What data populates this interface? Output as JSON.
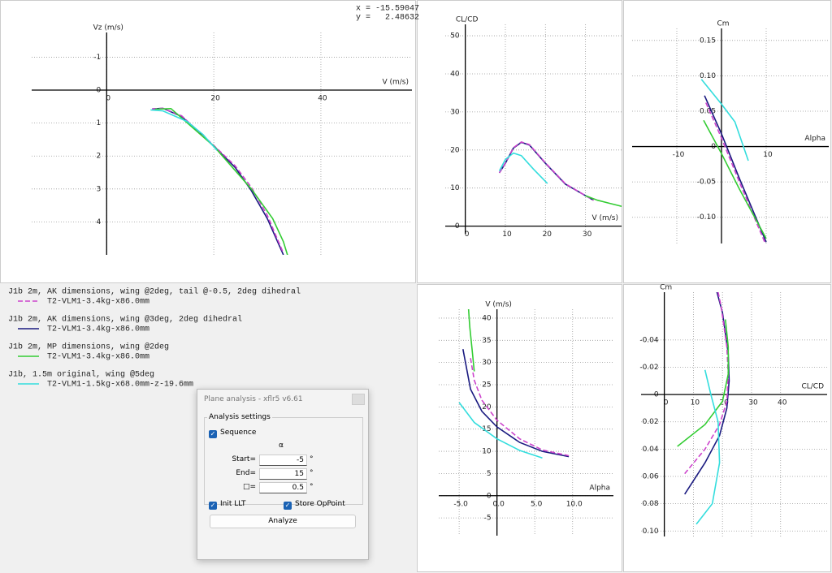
{
  "cursor_readout": {
    "x": "x = -15.59047",
    "y": "y =   2.48632"
  },
  "chart_data": [
    {
      "type": "line",
      "x_label": "V (m/s)",
      "y_label": "Vz (m/s)",
      "xlim": [
        -14,
        57
      ],
      "ylim": [
        5,
        -1.75
      ],
      "xticks": [
        0,
        20,
        40
      ],
      "yticks": [
        -1,
        0,
        1,
        2,
        3,
        4
      ],
      "grid": true,
      "series": [
        {
          "color": "#1a1a80",
          "dash": false,
          "x": [
            8.5,
            10.5,
            14,
            20,
            24,
            27,
            30,
            33
          ],
          "values": [
            0.57,
            0.55,
            0.8,
            1.7,
            2.35,
            3.05,
            3.9,
            5.0
          ]
        },
        {
          "color": "#cc44cc",
          "dash": true,
          "x": [
            8.5,
            10.5,
            14,
            20,
            24,
            27,
            30,
            33
          ],
          "values": [
            0.57,
            0.55,
            0.78,
            1.68,
            2.3,
            2.95,
            3.8,
            4.95
          ]
        },
        {
          "color": "#33cc33",
          "dash": false,
          "x": [
            9,
            12,
            20,
            27,
            31,
            33,
            34.7
          ],
          "values": [
            0.58,
            0.56,
            1.7,
            3.0,
            3.9,
            4.6,
            5.5
          ]
        },
        {
          "color": "#33dddd",
          "dash": false,
          "x": [
            8.2,
            10.5,
            15,
            18,
            20.6
          ],
          "values": [
            0.6,
            0.63,
            0.95,
            1.35,
            1.83
          ]
        }
      ]
    },
    {
      "type": "line",
      "x_label": "V (m/s)",
      "y_label": "CL/CD",
      "xlim": [
        -5,
        39
      ],
      "ylim": [
        -2,
        53
      ],
      "xticks": [
        0,
        10,
        20,
        30
      ],
      "yticks": [
        0,
        10,
        20,
        30,
        40,
        50
      ],
      "grid": true,
      "series": [
        {
          "color": "#1a1a80",
          "dash": false,
          "x": [
            8.5,
            10,
            12,
            14,
            16,
            20,
            25,
            30,
            32
          ],
          "values": [
            14,
            16.5,
            20.5,
            22,
            21.3,
            16.5,
            11,
            8,
            6.8
          ]
        },
        {
          "color": "#cc44cc",
          "dash": true,
          "x": [
            8.5,
            10,
            12,
            14,
            16,
            20,
            25,
            30,
            32
          ],
          "values": [
            14,
            16.6,
            20.6,
            22.1,
            21.4,
            16.6,
            11.1,
            8,
            6.8
          ]
        },
        {
          "color": "#33cc33",
          "dash": false,
          "x": [
            30,
            33,
            36,
            39
          ],
          "values": [
            8,
            6.8,
            6,
            5.2
          ]
        },
        {
          "color": "#33dddd",
          "dash": false,
          "x": [
            8.5,
            10,
            12,
            14,
            17,
            20.5
          ],
          "values": [
            14.5,
            17.5,
            19.2,
            18.5,
            15,
            11.2
          ]
        }
      ]
    },
    {
      "type": "line",
      "x_label": "Alpha",
      "y_label": "Cm",
      "xlim": [
        -20,
        24
      ],
      "ylim": [
        -0.137,
        0.167
      ],
      "xticks": [
        -10,
        10
      ],
      "yticks": [
        {
          "value": -0.1,
          "label": "-0.10"
        },
        -0.05,
        0,
        0.05,
        {
          "value": 0.1,
          "label": "0.10"
        },
        0.15
      ],
      "grid": true,
      "series": [
        {
          "color": "#1a1a80",
          "dash": false,
          "x": [
            -3.8,
            0,
            4,
            10
          ],
          "values": [
            0.072,
            0.018,
            -0.045,
            -0.135
          ]
        },
        {
          "color": "#cc44cc",
          "dash": true,
          "x": [
            -3.5,
            0,
            4,
            10
          ],
          "values": [
            0.062,
            0.012,
            -0.05,
            -0.14
          ]
        },
        {
          "color": "#33cc33",
          "dash": false,
          "x": [
            -4,
            0,
            4,
            10
          ],
          "values": [
            0.037,
            -0.01,
            -0.06,
            -0.13
          ]
        },
        {
          "color": "#33dddd",
          "dash": false,
          "x": [
            -4.5,
            0,
            3,
            6
          ],
          "values": [
            0.095,
            0.06,
            0.035,
            -0.02
          ]
        }
      ]
    },
    {
      "type": "line",
      "x_label": "Alpha",
      "y_label": "V (m/s)",
      "xlim": [
        -7.7,
        15.4
      ],
      "ylim": [
        -9,
        42
      ],
      "xticks": [
        {
          "value": -5,
          "label": "-5.0"
        },
        {
          "value": 0,
          "label": "0.0"
        },
        {
          "value": 5,
          "label": "5.0"
        },
        {
          "value": 10,
          "label": "10.0"
        }
      ],
      "yticks": [
        -5,
        0,
        5,
        10,
        15,
        20,
        25,
        30,
        35,
        40
      ],
      "grid": true,
      "series": [
        {
          "color": "#1a1a80",
          "dash": false,
          "x": [
            -4.5,
            -3.5,
            -2,
            0,
            3,
            6,
            9.5
          ],
          "values": [
            33,
            24,
            19,
            15.5,
            12,
            10,
            8.8
          ]
        },
        {
          "color": "#cc44cc",
          "dash": true,
          "x": [
            -3.5,
            -3,
            -2,
            0,
            3,
            6,
            9.5
          ],
          "values": [
            31,
            26,
            21.5,
            17,
            12.8,
            10.3,
            9
          ]
        },
        {
          "color": "#33cc33",
          "dash": false,
          "x": [
            -3.8,
            -3.6,
            -3.3,
            -3
          ],
          "values": [
            43,
            38,
            33,
            28
          ]
        },
        {
          "color": "#33dddd",
          "dash": false,
          "x": [
            -5,
            -3,
            0,
            3,
            6
          ],
          "values": [
            21,
            16.5,
            12.8,
            10.2,
            8.5
          ]
        }
      ]
    },
    {
      "type": "line",
      "x_label": "CL/CD",
      "y_label": "Cm",
      "xlim": [
        -8,
        56
      ],
      "ylim": [
        0.104,
        -0.075
      ],
      "xticks": [
        0,
        10,
        20,
        30,
        40
      ],
      "yticks": [
        -0.04,
        -0.02,
        0,
        0.02,
        0.04,
        0.06,
        0.08,
        {
          "value": 0.1,
          "label": "0.10"
        }
      ],
      "grid": true,
      "series": [
        {
          "color": "#1a1a80",
          "dash": false,
          "x": [
            7,
            14,
            19,
            21.5,
            22.3,
            22,
            20,
            17.5
          ],
          "values": [
            0.073,
            0.05,
            0.03,
            0.01,
            -0.01,
            -0.03,
            -0.06,
            -0.08
          ]
        },
        {
          "color": "#cc44cc",
          "dash": true,
          "x": [
            7,
            14,
            19,
            21.5,
            22,
            21.5,
            19.5,
            18
          ],
          "values": [
            0.058,
            0.04,
            0.022,
            0.005,
            -0.015,
            -0.035,
            -0.065,
            -0.08
          ]
        },
        {
          "color": "#33cc33",
          "dash": false,
          "x": [
            4.5,
            14,
            20,
            22,
            22,
            21
          ],
          "values": [
            0.038,
            0.022,
            0.005,
            -0.015,
            -0.035,
            -0.055
          ]
        },
        {
          "color": "#33dddd",
          "dash": false,
          "x": [
            11,
            16.5,
            19,
            18.5,
            16,
            14
          ],
          "values": [
            0.095,
            0.08,
            0.05,
            0.02,
            0,
            -0.018
          ]
        }
      ]
    }
  ],
  "legend": [
    {
      "plane": "J1b 2m, AK dimensions, wing @2deg, tail @-0.5, 2deg dihedral",
      "polar": "T2-VLM1-3.4kg-x86.0mm",
      "color": "#cc44cc",
      "dash": true
    },
    {
      "plane": "J1b 2m, AK dimensions, wing @3deg, 2deg dihedral",
      "polar": "T2-VLM1-3.4kg-x86.0mm",
      "color": "#1a1a80",
      "dash": false
    },
    {
      "plane": "J1b 2m, MP dimensions, wing @2deg",
      "polar": "T2-VLM1-3.4kg-x86.0mm",
      "color": "#33cc33",
      "dash": false
    },
    {
      "plane": "J1b, 1.5m original, wing @5deg",
      "polar": "T2-VLM1-1.5kg-x68.0mm-z-19.6mm",
      "color": "#33dddd",
      "dash": false
    }
  ],
  "dialog": {
    "title": "Plane analysis - xflr5 v6.61",
    "group": "Analysis settings",
    "sequence": {
      "label": "Sequence",
      "checked": true
    },
    "column_header": "α",
    "rows": [
      {
        "label": "Start=",
        "value": -5,
        "unit": "°"
      },
      {
        "label": "End=",
        "value": 15,
        "unit": "°"
      },
      {
        "label": "□=",
        "value": 0.5,
        "unit": "°"
      }
    ],
    "init_llt": {
      "label": "Init LLT",
      "checked": true
    },
    "store_oppoint": {
      "label": "Store OpPoint",
      "checked": true
    },
    "button": "Analyze"
  }
}
